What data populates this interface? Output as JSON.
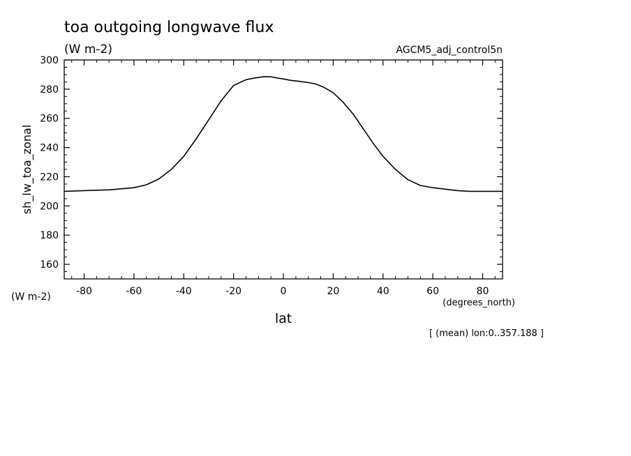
{
  "chart_data": {
    "type": "line",
    "title": "toa outgoing longwave flux",
    "subtitle": "(W m-2)",
    "dataset_label": "AGCM5_adj_control5n",
    "ylabel": "sh_lw_toa_zonal",
    "yunits": "(W m-2)",
    "xlabel": "lat",
    "xunits": "(degrees_north)",
    "footnote": "[ (mean) lon:0..357.188 ]",
    "xlim": [
      -88,
      88
    ],
    "ylim": [
      150,
      300
    ],
    "xticks": [
      -80,
      -60,
      -40,
      -20,
      0,
      20,
      40,
      60,
      80
    ],
    "xtick_labels": [
      "-80",
      "-60",
      "-40",
      "-20",
      "0",
      "20",
      "40",
      "60",
      "80"
    ],
    "yticks": [
      160,
      180,
      200,
      220,
      240,
      260,
      280,
      300
    ],
    "ytick_labels": [
      "160",
      "180",
      "200",
      "220",
      "240",
      "260",
      "280",
      "300"
    ],
    "grid": false,
    "series": [
      {
        "x": [
          -88,
          -80,
          -70,
          -60,
          -55,
          -50,
          -45,
          -40,
          -35,
          -30,
          -25,
          -20,
          -15,
          -12,
          -10,
          -8,
          -5,
          -2,
          0,
          3,
          6,
          10,
          13,
          16,
          20,
          24,
          28,
          32,
          36,
          40,
          45,
          50,
          55,
          60,
          65,
          70,
          75,
          80,
          88
        ],
        "y": [
          210,
          210.5,
          211,
          212.5,
          214.5,
          218.5,
          225,
          234,
          246,
          259,
          272,
          282.5,
          286.5,
          287.5,
          288,
          288.5,
          288.5,
          287.5,
          287,
          286,
          285.5,
          284.5,
          283.5,
          281.5,
          277.5,
          271,
          263,
          253,
          243,
          234,
          225,
          218,
          214,
          212.5,
          211.5,
          210.5,
          210,
          210,
          210
        ]
      }
    ]
  }
}
